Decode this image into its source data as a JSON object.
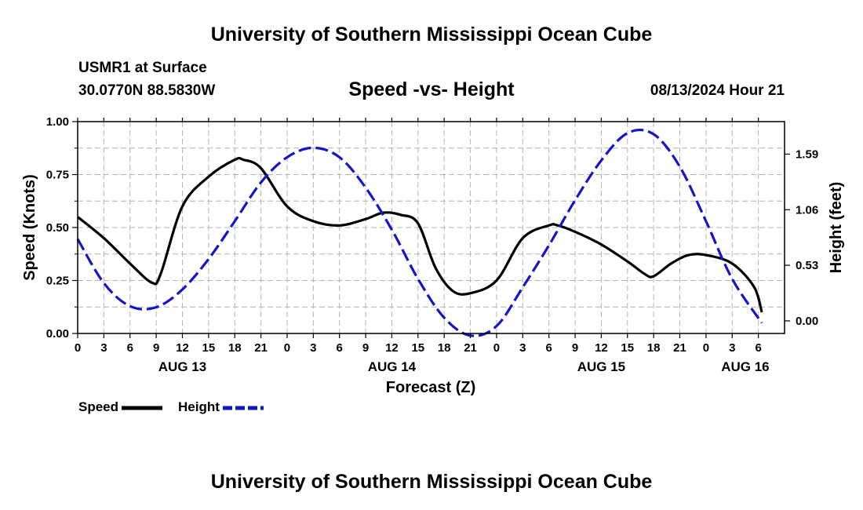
{
  "header": {
    "title": "University of Southern Mississippi Ocean Cube",
    "station": "USMR1 at Surface",
    "coords": "30.0770N  88.5830W",
    "subtitle": "Speed -vs- Height",
    "timestamp": "08/13/2024 Hour 21"
  },
  "footer": {
    "title": "University of Southern Mississippi Ocean Cube"
  },
  "legend": {
    "speed_label": "Speed",
    "height_label": "Height"
  },
  "chart_data": {
    "type": "line",
    "xlabel": "Forecast (Z)",
    "ylabel_left": "Speed (Knots)",
    "ylabel_right": "Height (feet)",
    "x_range_hours": [
      0,
      81
    ],
    "x_ticks": [
      {
        "h": 0,
        "label": "0"
      },
      {
        "h": 3,
        "label": "3"
      },
      {
        "h": 6,
        "label": "6"
      },
      {
        "h": 9,
        "label": "9"
      },
      {
        "h": 12,
        "label": "12"
      },
      {
        "h": 15,
        "label": "15"
      },
      {
        "h": 18,
        "label": "18"
      },
      {
        "h": 21,
        "label": "21"
      },
      {
        "h": 24,
        "label": "0"
      },
      {
        "h": 27,
        "label": "3"
      },
      {
        "h": 30,
        "label": "6"
      },
      {
        "h": 33,
        "label": "9"
      },
      {
        "h": 36,
        "label": "12"
      },
      {
        "h": 39,
        "label": "15"
      },
      {
        "h": 42,
        "label": "18"
      },
      {
        "h": 45,
        "label": "21"
      },
      {
        "h": 48,
        "label": "0"
      },
      {
        "h": 51,
        "label": "3"
      },
      {
        "h": 54,
        "label": "6"
      },
      {
        "h": 57,
        "label": "9"
      },
      {
        "h": 60,
        "label": "12"
      },
      {
        "h": 63,
        "label": "15"
      },
      {
        "h": 66,
        "label": "18"
      },
      {
        "h": 69,
        "label": "21"
      },
      {
        "h": 72,
        "label": "0"
      },
      {
        "h": 75,
        "label": "3"
      },
      {
        "h": 78,
        "label": "6"
      }
    ],
    "date_labels": [
      {
        "h": 12,
        "label": "AUG 13"
      },
      {
        "h": 36,
        "label": "AUG 14"
      },
      {
        "h": 60,
        "label": "AUG 15"
      },
      {
        "h": 76.5,
        "label": "AUG 16"
      }
    ],
    "y_left": {
      "min": 0,
      "max": 1.0,
      "ticks": [
        "0.00",
        "0.25",
        "0.50",
        "0.75",
        "1.00"
      ],
      "tick_values": [
        0,
        0.25,
        0.5,
        0.75,
        1.0
      ]
    },
    "y_right": {
      "min": -0.12,
      "max": 1.9,
      "ticks": [
        "0.00",
        "0.53",
        "1.06",
        "1.59"
      ],
      "tick_values": [
        0,
        0.53,
        1.06,
        1.59
      ]
    },
    "grid": true,
    "series": [
      {
        "name": "Speed",
        "axis": "left",
        "color": "#000000",
        "style": "solid",
        "points": [
          [
            0,
            0.55
          ],
          [
            3,
            0.45
          ],
          [
            6,
            0.33
          ],
          [
            8.5,
            0.24
          ],
          [
            9.5,
            0.28
          ],
          [
            12,
            0.6
          ],
          [
            15,
            0.74
          ],
          [
            18,
            0.82
          ],
          [
            19,
            0.82
          ],
          [
            21,
            0.78
          ],
          [
            24,
            0.6
          ],
          [
            27,
            0.53
          ],
          [
            30,
            0.51
          ],
          [
            33,
            0.54
          ],
          [
            35,
            0.57
          ],
          [
            37,
            0.56
          ],
          [
            39,
            0.52
          ],
          [
            41,
            0.31
          ],
          [
            43,
            0.2
          ],
          [
            45,
            0.19
          ],
          [
            48,
            0.25
          ],
          [
            51,
            0.45
          ],
          [
            54,
            0.51
          ],
          [
            55,
            0.51
          ],
          [
            57,
            0.48
          ],
          [
            60,
            0.42
          ],
          [
            63,
            0.34
          ],
          [
            65,
            0.28
          ],
          [
            66,
            0.27
          ],
          [
            68,
            0.33
          ],
          [
            70,
            0.37
          ],
          [
            72,
            0.37
          ],
          [
            75,
            0.33
          ],
          [
            77.5,
            0.22
          ],
          [
            78.4,
            0.1
          ]
        ]
      },
      {
        "name": "Height",
        "axis": "right",
        "color": "#1515c8",
        "style": "dashed",
        "points": [
          [
            0,
            0.78
          ],
          [
            3,
            0.36
          ],
          [
            6,
            0.14
          ],
          [
            9,
            0.13
          ],
          [
            12,
            0.3
          ],
          [
            15,
            0.59
          ],
          [
            18,
            0.95
          ],
          [
            21,
            1.32
          ],
          [
            24,
            1.56
          ],
          [
            27,
            1.65
          ],
          [
            30,
            1.56
          ],
          [
            33,
            1.27
          ],
          [
            36,
            0.87
          ],
          [
            39,
            0.4
          ],
          [
            42,
            0.03
          ],
          [
            45,
            -0.14
          ],
          [
            48,
            -0.05
          ],
          [
            51,
            0.32
          ],
          [
            54,
            0.72
          ],
          [
            57,
            1.15
          ],
          [
            60,
            1.53
          ],
          [
            63,
            1.79
          ],
          [
            66,
            1.78
          ],
          [
            69,
            1.47
          ],
          [
            72,
            0.95
          ],
          [
            75,
            0.4
          ],
          [
            78.4,
            -0.02
          ]
        ]
      }
    ]
  }
}
